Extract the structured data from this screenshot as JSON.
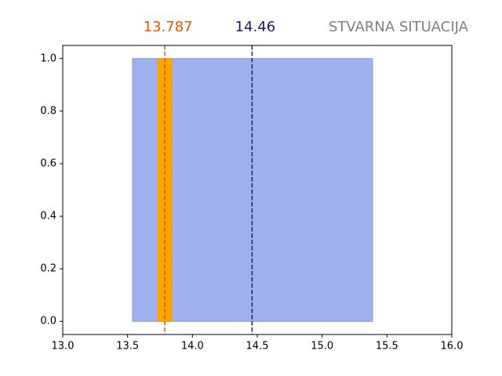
{
  "chart_data": {
    "type": "span",
    "title": "STVARNA SITUACIJA",
    "spans": [
      {
        "start": 13.538,
        "end": 15.389,
        "ymin": 0,
        "ymax": 1,
        "color": "#9fb2ee",
        "edge": "#8098dd"
      },
      {
        "start": 13.732,
        "end": 13.841,
        "ymin": 0,
        "ymax": 1,
        "color": "#ffa500",
        "edge": "#f09a00"
      }
    ],
    "lines": [
      {
        "value": 13.787,
        "color": "#e6550d"
      },
      {
        "value": 14.46,
        "color": "#1b1b6b"
      }
    ],
    "xlim": [
      13.0,
      16.0
    ],
    "xticks": [
      {
        "value": 13,
        "label": "13.0"
      },
      13.5,
      {
        "value": 14,
        "label": "14.0"
      },
      14.5,
      {
        "value": 15,
        "label": "15.0"
      },
      15.5,
      {
        "value": 16,
        "label": "16.0"
      }
    ],
    "ylim": [
      -0.05,
      1.05
    ],
    "yticks": [
      {
        "value": 0,
        "label": "0.0"
      },
      0.2,
      0.4,
      0.6,
      0.8,
      {
        "value": 1,
        "label": "1.0"
      }
    ]
  }
}
